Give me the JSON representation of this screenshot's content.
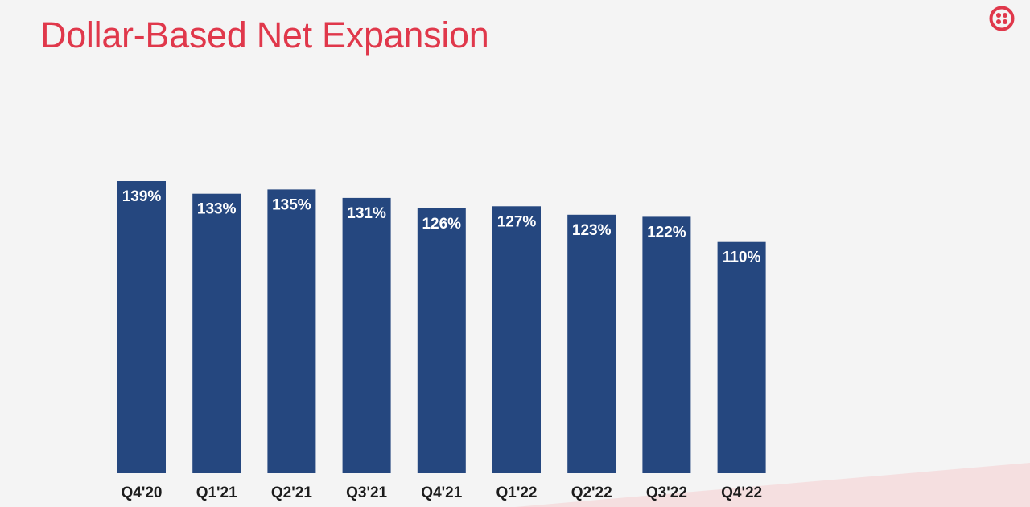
{
  "slide": {
    "title": "Dollar-Based Net Expansion"
  },
  "logo": {
    "icon": "twilio-logo-icon",
    "color": "#e0384b"
  },
  "colors": {
    "bar": "#25477f",
    "title": "#e0384b",
    "accent_wedge": "#f5dfe0"
  },
  "chart_data": {
    "type": "bar",
    "title": "Dollar-Based Net Expansion",
    "xlabel": "",
    "ylabel": "",
    "categories": [
      "Q4'20",
      "Q1'21",
      "Q2'21",
      "Q3'21",
      "Q4'21",
      "Q1'22",
      "Q2'22",
      "Q3'22",
      "Q4'22"
    ],
    "values": [
      139,
      133,
      135,
      131,
      126,
      127,
      123,
      122,
      110
    ],
    "value_labels": [
      "139%",
      "133%",
      "135%",
      "131%",
      "126%",
      "127%",
      "123%",
      "122%",
      "110%"
    ],
    "unit": "%",
    "ylim": [
      0,
      139
    ],
    "grid": false,
    "legend": "none"
  }
}
